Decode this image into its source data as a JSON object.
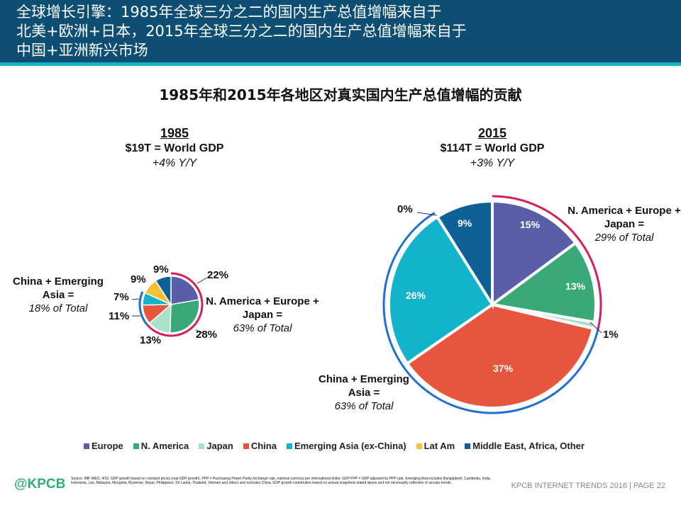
{
  "header": {
    "lines": [
      "全球增长引擎：1985年全球三分之二的国内生产总值增幅来自于",
      "北美+欧洲+日本，2015年全球三分之二的国内生产总值增幅来自于",
      "中国+亚洲新兴市场"
    ]
  },
  "colors": {
    "Europe": "#5a5ea8",
    "N. America": "#39a978",
    "Japan": "#a9e0c9",
    "China": "#e8553e",
    "Emerging Asia (ex-China)": "#13b3cc",
    "Lat Am": "#f7c135",
    "Middle East, Africa, Other": "#0f6096",
    "red_outline": "#d61f5a",
    "blue_outline": "#1f6fd4"
  },
  "chart_data": [
    {
      "type": "pie",
      "title": "1985年和2015年各地区对真实国内生产总值增幅的贡献",
      "year": "1985",
      "gdp": "$19T = World GDP",
      "yoy": "+4% Y/Y",
      "categories": [
        "Europe",
        "N. America",
        "Japan",
        "China",
        "Emerging Asia (ex-China)",
        "Lat Am",
        "Middle East, Africa, Other"
      ],
      "values": [
        22,
        28,
        13,
        11,
        7,
        9,
        9
      ],
      "labels": [
        "22%",
        "28%",
        "13%",
        "11%",
        "7%",
        "9%",
        "9%"
      ],
      "groups": [
        {
          "name": "N. America + Europe + Japan =",
          "total": "63% of Total"
        },
        {
          "name": "China + Emerging Asia =",
          "total": "18% of Total"
        }
      ]
    },
    {
      "type": "pie",
      "year": "2015",
      "gdp": "$114T = World GDP",
      "yoy": "+3% Y/Y",
      "categories": [
        "Europe",
        "N. America",
        "Japan",
        "China",
        "Emerging Asia (ex-China)",
        "Lat Am",
        "Middle East, Africa, Other"
      ],
      "values": [
        15,
        13,
        1,
        37,
        26,
        0,
        9
      ],
      "labels": [
        "15%",
        "13%",
        "1%",
        "37%",
        "26%",
        "0%",
        "9%"
      ],
      "groups": [
        {
          "name": "N. America + Europe + Japan =",
          "total": "29% of Total"
        },
        {
          "name": "China + Emerging Asia =",
          "total": "63% of Total"
        }
      ]
    }
  ],
  "legend": [
    "Europe",
    "N. America",
    "Japan",
    "China",
    "Emerging Asia (ex-China)",
    "Lat Am",
    "Middle East, Africa, Other"
  ],
  "footer": {
    "logo": "@KPCB",
    "source": "Source: IMF WEO, 4/16. GDP growth based on constant prices (real GDP growth). PPP = Purchasing Power Parity exchange rate, national currency per international dollar. GDP PPP = GDP adjusted by PPP rate. Emerging Asia includes Bangladesh, Cambodia, India, Indonesia, Lao, Malaysia, Mongolia, Myanmar, Nepal, Philippines, Sri Lanka, Thailand, Vietnam and others and excludes China. GDP growth contribution based on annual snapshots stated above and not necessarily reflective of secular trends.",
    "page": "KPCB INTERNET TRENDS 2016  |  PAGE 22"
  }
}
